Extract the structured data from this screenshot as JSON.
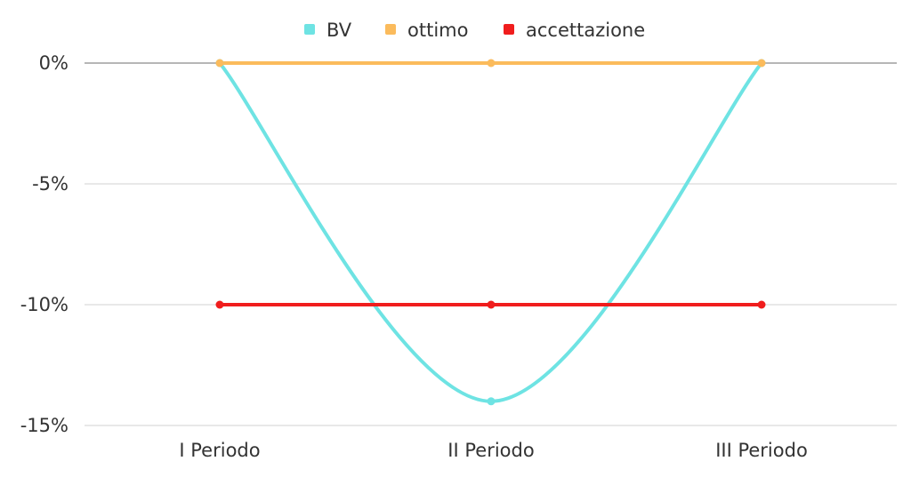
{
  "chart_data": {
    "type": "line",
    "categories": [
      "I Periodo",
      "II Periodo",
      "III Periodo"
    ],
    "series": [
      {
        "name": "BV",
        "values": [
          0,
          -14,
          0
        ],
        "color": "#6ee3e3",
        "smooth": true
      },
      {
        "name": "ottimo",
        "values": [
          0,
          0,
          0
        ],
        "color": "#fbbb5c",
        "smooth": false
      },
      {
        "name": "accettazione",
        "values": [
          -10,
          -10,
          -10
        ],
        "color": "#f01d1d",
        "smooth": false
      }
    ],
    "y_ticks": [
      0,
      -5,
      -10,
      -15
    ],
    "y_tick_labels": [
      "0%",
      "-5%",
      "-10%",
      "-15%"
    ],
    "ylim": [
      -15,
      0
    ],
    "grid": true,
    "legend_position": "top-center"
  }
}
